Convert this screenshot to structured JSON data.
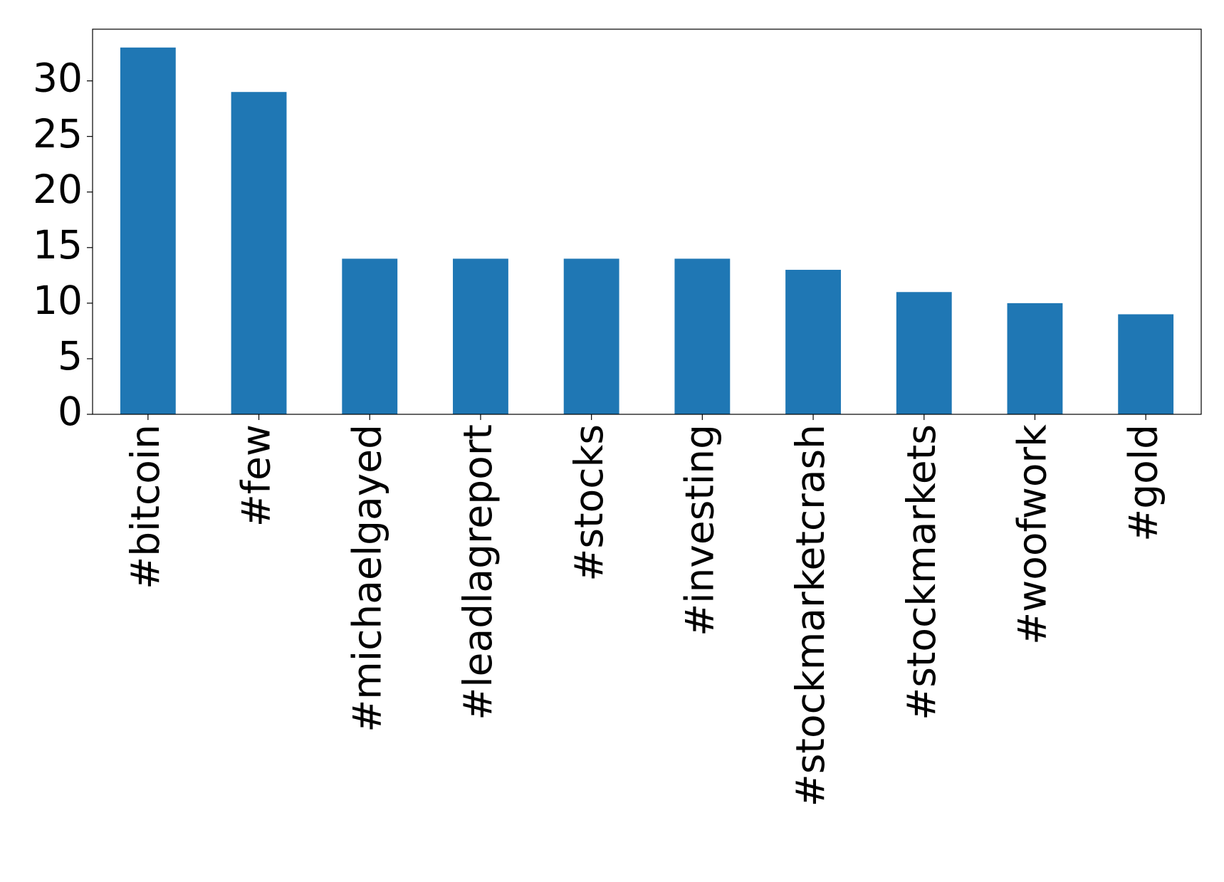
{
  "chart_data": {
    "type": "bar",
    "categories": [
      "#bitcoin",
      "#few",
      "#michaelgayed",
      "#leadlagreport",
      "#stocks",
      "#investing",
      "#stockmarketcrash",
      "#stockmarkets",
      "#woofwork",
      "#gold"
    ],
    "values": [
      33,
      29,
      14,
      14,
      14,
      14,
      13,
      11,
      10,
      9
    ],
    "color": "#1f77b4",
    "ylim": [
      0,
      34.65
    ],
    "yticks": [
      0,
      5,
      10,
      15,
      20,
      25,
      30
    ],
    "grid": false
  }
}
